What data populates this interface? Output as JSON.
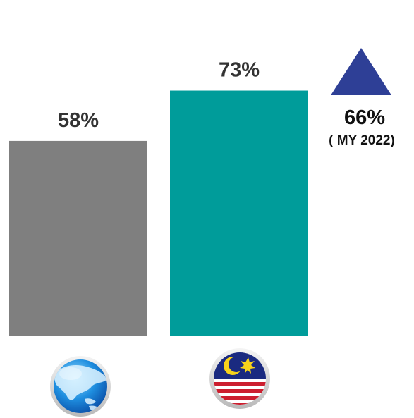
{
  "chart_data": {
    "type": "bar",
    "categories": [
      "Asia",
      "Malaysia"
    ],
    "values": [
      58,
      73
    ],
    "value_labels": [
      "58%",
      "73%"
    ],
    "ylim": [
      0,
      100
    ],
    "bar_colors": [
      "#7f7f7f",
      "#009c9a"
    ],
    "category_icons": [
      "asia-globe-icon",
      "malaysia-flag-icon"
    ],
    "title": "",
    "xlabel": "",
    "ylabel": "",
    "comparison": {
      "icon": "up-triangle-icon",
      "icon_color": "#2e3f96",
      "value_label": "66%",
      "note": "( MY 2022)"
    }
  }
}
